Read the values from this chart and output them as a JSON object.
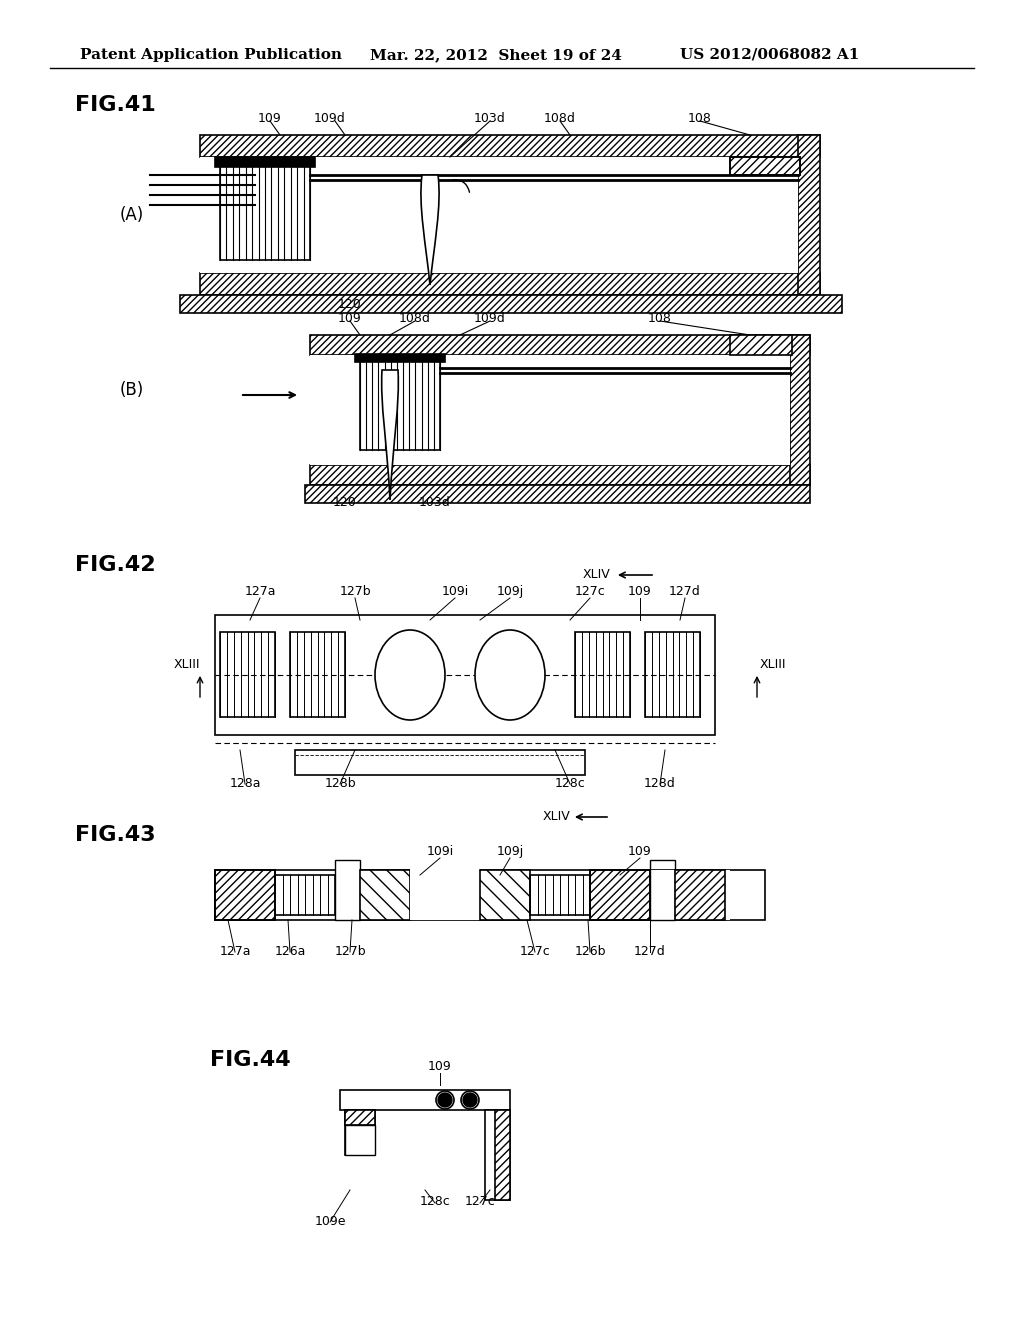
{
  "bg_color": "#ffffff",
  "header_text": "Patent Application Publication",
  "header_date": "Mar. 22, 2012  Sheet 19 of 24",
  "header_patent": "US 2012/0068082 A1",
  "fig41_label": "FIG.41",
  "fig42_label": "FIG.42",
  "fig43_label": "FIG.43",
  "fig44_label": "FIG.44"
}
